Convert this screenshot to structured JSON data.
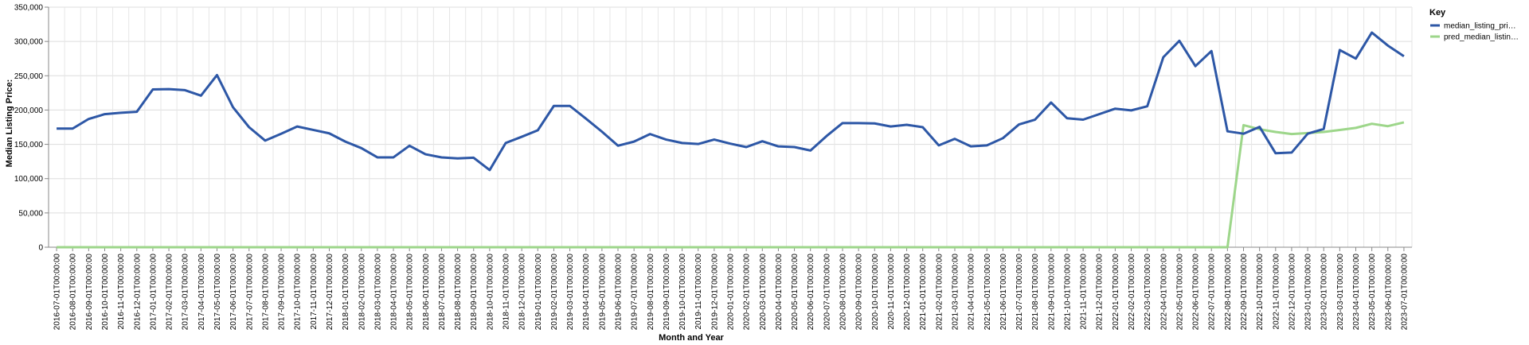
{
  "chart_data": {
    "type": "line",
    "xlabel": "Month and Year",
    "ylabel": "Median Listing Price:",
    "ylim": [
      0,
      350000
    ],
    "y_ticks": [
      "0",
      "50,000",
      "100,000",
      "150,000",
      "200,000",
      "250,000",
      "300,000",
      "350,000"
    ],
    "grid": true,
    "legend": {
      "title": "Key",
      "placement": "top-right"
    },
    "categories": [
      "2016-07-01T00:00:00",
      "2016-08-01T00:00:00",
      "2016-09-01T00:00:00",
      "2016-10-01T00:00:00",
      "2016-11-01T00:00:00",
      "2016-12-01T00:00:00",
      "2017-01-01T00:00:00",
      "2017-02-01T00:00:00",
      "2017-03-01T00:00:00",
      "2017-04-01T00:00:00",
      "2017-05-01T00:00:00",
      "2017-06-01T00:00:00",
      "2017-07-01T00:00:00",
      "2017-08-01T00:00:00",
      "2017-09-01T00:00:00",
      "2017-10-01T00:00:00",
      "2017-11-01T00:00:00",
      "2017-12-01T00:00:00",
      "2018-01-01T00:00:00",
      "2018-02-01T00:00:00",
      "2018-03-01T00:00:00",
      "2018-04-01T00:00:00",
      "2018-05-01T00:00:00",
      "2018-06-01T00:00:00",
      "2018-07-01T00:00:00",
      "2018-08-01T00:00:00",
      "2018-09-01T00:00:00",
      "2018-10-01T00:00:00",
      "2018-11-01T00:00:00",
      "2018-12-01T00:00:00",
      "2019-01-01T00:00:00",
      "2019-02-01T00:00:00",
      "2019-03-01T00:00:00",
      "2019-04-01T00:00:00",
      "2019-05-01T00:00:00",
      "2019-06-01T00:00:00",
      "2019-07-01T00:00:00",
      "2019-08-01T00:00:00",
      "2019-09-01T00:00:00",
      "2019-10-01T00:00:00",
      "2019-11-01T00:00:00",
      "2019-12-01T00:00:00",
      "2020-01-01T00:00:00",
      "2020-02-01T00:00:00",
      "2020-03-01T00:00:00",
      "2020-04-01T00:00:00",
      "2020-05-01T00:00:00",
      "2020-06-01T00:00:00",
      "2020-07-01T00:00:00",
      "2020-08-01T00:00:00",
      "2020-09-01T00:00:00",
      "2020-10-01T00:00:00",
      "2020-11-01T00:00:00",
      "2020-12-01T00:00:00",
      "2021-01-01T00:00:00",
      "2021-02-01T00:00:00",
      "2021-03-01T00:00:00",
      "2021-04-01T00:00:00",
      "2021-05-01T00:00:00",
      "2021-06-01T00:00:00",
      "2021-07-01T00:00:00",
      "2021-08-01T00:00:00",
      "2021-09-01T00:00:00",
      "2021-10-01T00:00:00",
      "2021-11-01T00:00:00",
      "2021-12-01T00:00:00",
      "2022-01-01T00:00:00",
      "2022-02-01T00:00:00",
      "2022-03-01T00:00:00",
      "2022-04-01T00:00:00",
      "2022-05-01T00:00:00",
      "2022-06-01T00:00:00",
      "2022-07-01T00:00:00",
      "2022-08-01T00:00:00",
      "2022-09-01T00:00:00",
      "2022-10-01T00:00:00",
      "2022-11-01T00:00:00",
      "2022-12-01T00:00:00",
      "2023-01-01T00:00:00",
      "2023-02-01T00:00:00",
      "2023-03-01T00:00:00",
      "2023-04-01T00:00:00",
      "2023-05-01T00:00:00",
      "2023-06-01T00:00:00",
      "2023-07-01T00:00:00"
    ],
    "series": [
      {
        "name": "median_listing_pri…",
        "color": "#2d57a6",
        "values": [
          173000,
          173000,
          187000,
          194000,
          196000,
          197500,
          230000,
          230500,
          229000,
          221000,
          251000,
          204000,
          175000,
          155500,
          165500,
          176000,
          171000,
          166000,
          154000,
          144500,
          131000,
          131000,
          148000,
          135500,
          131000,
          129500,
          130500,
          112500,
          152000,
          161000,
          170500,
          206000,
          206000,
          187500,
          168500,
          148000,
          154000,
          165000,
          157000,
          152000,
          150500,
          157000,
          151000,
          146000,
          154500,
          147000,
          146000,
          141000,
          162000,
          181000,
          181000,
          180500,
          176000,
          178500,
          175000,
          148500,
          158000,
          147000,
          148500,
          159000,
          179000,
          186000,
          211000,
          188000,
          186000,
          194000,
          202000,
          199500,
          205500,
          277000,
          301000,
          264000,
          286000,
          169000,
          165500,
          175500,
          137000,
          138000,
          165500,
          172500,
          287500,
          275000,
          313000,
          294000,
          278500
        ]
      },
      {
        "name": "pred_median_listin…",
        "color": "#9dd68a",
        "values": [
          0,
          0,
          0,
          0,
          0,
          0,
          0,
          0,
          0,
          0,
          0,
          0,
          0,
          0,
          0,
          0,
          0,
          0,
          0,
          0,
          0,
          0,
          0,
          0,
          0,
          0,
          0,
          0,
          0,
          0,
          0,
          0,
          0,
          0,
          0,
          0,
          0,
          0,
          0,
          0,
          0,
          0,
          0,
          0,
          0,
          0,
          0,
          0,
          0,
          0,
          0,
          0,
          0,
          0,
          0,
          0,
          0,
          0,
          0,
          0,
          0,
          0,
          0,
          0,
          0,
          0,
          0,
          0,
          0,
          0,
          0,
          0,
          0,
          0,
          178000,
          172000,
          168000,
          165000,
          166500,
          168000,
          171000,
          174000,
          180000,
          176500,
          182000
        ]
      }
    ]
  }
}
